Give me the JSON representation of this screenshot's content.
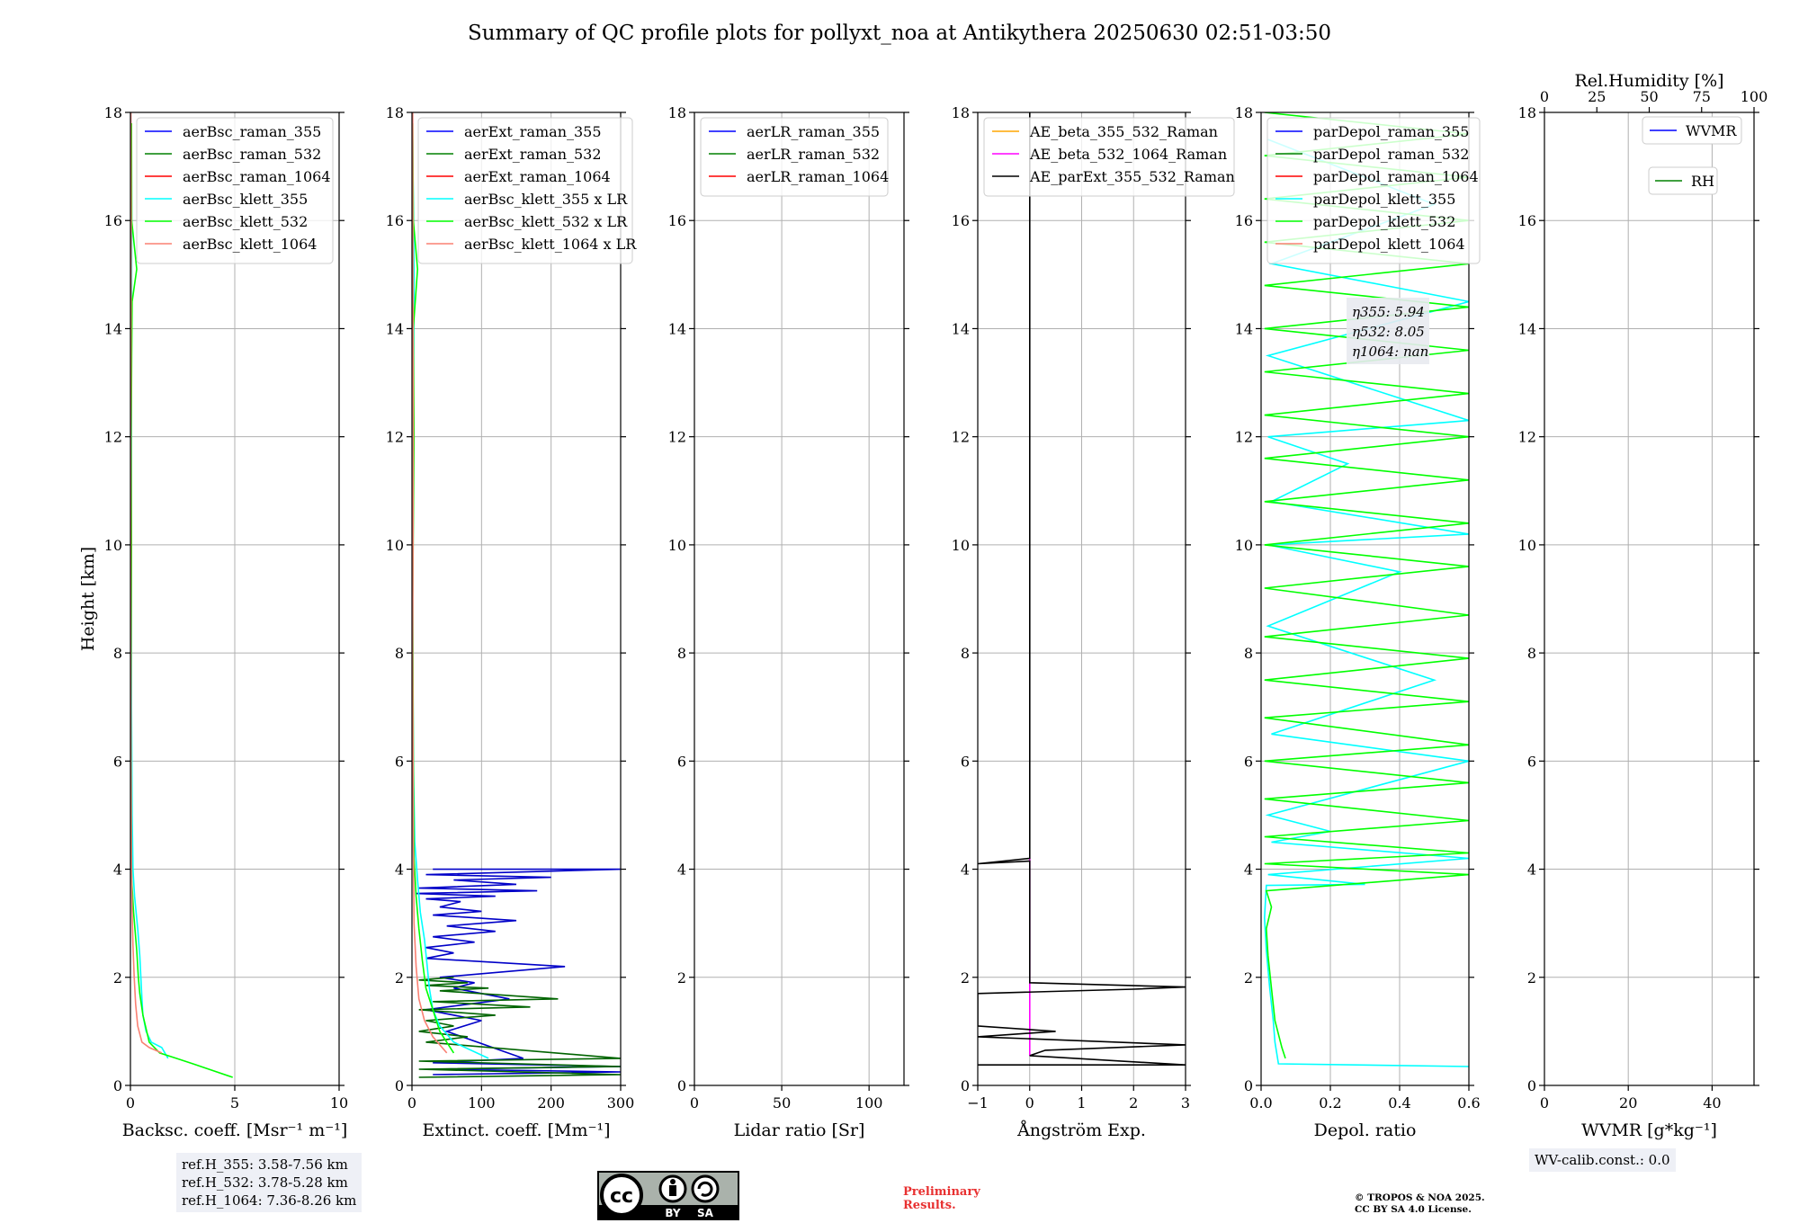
{
  "title": "Summary of QC profile plots for pollyxt_noa at Antikythera 20250630 02:51-03:50",
  "ref_heights": [
    "ref.H_355: 3.58-7.56 km",
    "ref.H_532: 3.78-5.28 km",
    "ref.H_1064: 7.36-8.26 km"
  ],
  "wv_calib": "WV-calib.const.: 0.0",
  "preliminary": [
    "Preliminary",
    "Results."
  ],
  "copyright": [
    "© TROPOS & NOA 2025.",
    "CC BY SA 4.0 License."
  ],
  "cc_logo": {
    "label": "cc",
    "by": "BY",
    "sa": "SA"
  },
  "colors": {
    "blue": "#0000ff",
    "green": "#008000",
    "red": "#ff0000",
    "cyan": "#00ffff",
    "lime": "#00ff00",
    "salmon": "#fa8072",
    "orange": "#ffa500",
    "magenta": "#ff00ff",
    "black": "#000000",
    "darkblue": "#0000c8",
    "darkgreen": "#006400"
  },
  "chart_data": [
    {
      "type": "line",
      "ylabel": "Height [km]",
      "xlabel": "Backsc. coeff. [Msr⁻¹ m⁻¹]",
      "xlim": [
        0,
        10
      ],
      "xticks": [
        "0",
        "5",
        "10"
      ],
      "ylim": [
        0,
        18
      ],
      "yticks": [
        "0",
        "2",
        "4",
        "6",
        "8",
        "10",
        "12",
        "14",
        "16",
        "18"
      ],
      "grid": true,
      "legend_position": "top",
      "legend": [
        "aerBsc_raman_355",
        "aerBsc_raman_532",
        "aerBsc_raman_1064",
        "aerBsc_klett_355",
        "aerBsc_klett_532",
        "aerBsc_klett_1064"
      ],
      "series": [
        {
          "name": "aerBsc_klett_355",
          "color": "cyan",
          "x": [
            1.8,
            1.5,
            1.0,
            0.75,
            0.6,
            0.55,
            0.5,
            0.45,
            0.35,
            0.2,
            0.12,
            0.08,
            0.05,
            0.04,
            0.05,
            0.06,
            0.05
          ],
          "y": [
            0.5,
            0.7,
            0.8,
            1.0,
            1.3,
            1.6,
            2.0,
            2.4,
            2.9,
            3.5,
            4.0,
            5.0,
            7.0,
            10.0,
            13.0,
            16.0,
            17.5
          ]
        },
        {
          "name": "aerBsc_klett_532",
          "color": "lime",
          "x": [
            4.9,
            3.0,
            2.2,
            1.4,
            0.9,
            0.6,
            0.45,
            0.38,
            0.3,
            0.15,
            0.06,
            0.04,
            0.03,
            0.05,
            0.04,
            0.06,
            0.08,
            0.3,
            0.06,
            0.05
          ],
          "y": [
            0.15,
            0.4,
            0.5,
            0.6,
            0.8,
            1.3,
            1.7,
            2.0,
            2.5,
            3.2,
            3.8,
            5.0,
            7.0,
            10.0,
            12.0,
            13.5,
            14.5,
            15.1,
            16.0,
            17.8
          ]
        },
        {
          "name": "aerBsc_klett_1064",
          "color": "salmon",
          "x": [
            1.5,
            0.9,
            0.55,
            0.35,
            0.25,
            0.18,
            0.12,
            0.08,
            0.05,
            0.03,
            0.02,
            0.02,
            0.04,
            0.02
          ],
          "y": [
            0.6,
            0.7,
            0.8,
            1.1,
            1.5,
            2.0,
            2.6,
            3.2,
            4.0,
            6.0,
            9.0,
            12.0,
            16.0,
            18.0
          ]
        }
      ]
    },
    {
      "type": "line",
      "xlabel": "Extinct. coeff. [Mm⁻¹]",
      "xlim": [
        0,
        300
      ],
      "xticks": [
        "0",
        "100",
        "200",
        "300"
      ],
      "ylim": [
        0,
        18
      ],
      "yticks": [
        "0",
        "2",
        "4",
        "6",
        "8",
        "10",
        "12",
        "14",
        "16",
        "18"
      ],
      "grid": true,
      "legend_position": "top",
      "legend": [
        "aerExt_raman_355",
        "aerExt_raman_532",
        "aerExt_raman_1064",
        "aerBsc_klett_355 x LR",
        "aerBsc_klett_532 x LR",
        "aerBsc_klett_1064 x LR"
      ],
      "series": [
        {
          "name": "aerExt_raman_355",
          "color": "darkblue",
          "x": [
            30,
            300,
            20,
            200,
            60,
            150,
            10,
            180,
            5,
            120,
            20,
            70,
            40,
            100,
            30,
            150,
            50,
            120,
            30,
            90,
            20,
            60,
            20,
            220,
            40,
            90,
            60,
            140,
            20,
            100,
            50,
            160,
            30,
            300,
            30,
            300,
            30
          ],
          "y": [
            4.0,
            4.0,
            3.9,
            3.85,
            3.8,
            3.72,
            3.65,
            3.6,
            3.55,
            3.5,
            3.45,
            3.4,
            3.3,
            3.22,
            3.15,
            3.05,
            2.95,
            2.85,
            2.75,
            2.65,
            2.55,
            2.45,
            2.35,
            2.2,
            2.0,
            1.9,
            1.8,
            1.6,
            1.4,
            1.2,
            1.0,
            0.5,
            0.42,
            0.35,
            0.3,
            0.25,
            0.2
          ]
        },
        {
          "name": "aerExt_raman_532",
          "color": "darkgreen",
          "x": [
            60,
            10,
            80,
            20,
            110,
            40,
            210,
            30,
            170,
            10,
            120,
            20,
            60,
            10,
            80,
            20,
            300,
            10,
            300,
            10,
            300,
            10
          ],
          "y": [
            2.0,
            1.95,
            1.9,
            1.85,
            1.8,
            1.75,
            1.6,
            1.55,
            1.45,
            1.4,
            1.3,
            1.2,
            1.1,
            1.0,
            0.9,
            0.8,
            0.5,
            0.45,
            0.35,
            0.3,
            0.2,
            0.15
          ]
        },
        {
          "name": "aerBsc_klett_355 x LR",
          "color": "cyan",
          "x": [
            110,
            60,
            40,
            30,
            25,
            22,
            18,
            12,
            8,
            4,
            2,
            1,
            2,
            3,
            1
          ],
          "y": [
            0.5,
            0.8,
            1.1,
            1.4,
            1.8,
            2.2,
            2.7,
            3.2,
            3.8,
            4.5,
            6.0,
            9.0,
            12.0,
            15.0,
            17.5
          ]
        },
        {
          "name": "aerBsc_klett_532 x LR",
          "color": "lime",
          "x": [
            60,
            40,
            30,
            20,
            15,
            10,
            6,
            3,
            2,
            1,
            3,
            2,
            8,
            2,
            1
          ],
          "y": [
            0.6,
            1.0,
            1.4,
            1.8,
            2.3,
            2.9,
            3.5,
            4.2,
            6.0,
            9.0,
            12.0,
            14.0,
            15.1,
            16.0,
            17.8
          ]
        },
        {
          "name": "aerBsc_klett_1064 x LR",
          "color": "salmon",
          "x": [
            50,
            30,
            18,
            10,
            6,
            3,
            2,
            1,
            2,
            1
          ],
          "y": [
            0.6,
            0.9,
            1.2,
            1.6,
            2.2,
            3.0,
            4.5,
            8.0,
            12.0,
            18.0
          ]
        }
      ]
    },
    {
      "type": "line",
      "xlabel": "Lidar ratio [Sr]",
      "xlim": [
        0,
        120
      ],
      "xticks": [
        "0",
        "50",
        "100"
      ],
      "ylim": [
        0,
        18
      ],
      "yticks": [
        "0",
        "2",
        "4",
        "6",
        "8",
        "10",
        "12",
        "14",
        "16",
        "18"
      ],
      "grid": true,
      "legend_position": "top",
      "legend": [
        "aerLR_raman_355",
        "aerLR_raman_532",
        "aerLR_raman_1064"
      ],
      "series": []
    },
    {
      "type": "line",
      "xlabel": "Ångström Exp.",
      "xlim": [
        -1,
        3
      ],
      "xticks": [
        "−1",
        "0",
        "1",
        "2",
        "3"
      ],
      "ylim": [
        0,
        18
      ],
      "yticks": [
        "0",
        "2",
        "4",
        "6",
        "8",
        "10",
        "12",
        "14",
        "16",
        "18"
      ],
      "grid": true,
      "legend_position": "top",
      "legend": [
        "AE_beta_355_532_Raman",
        "AE_beta_532_1064_Raman",
        "AE_parExt_355_532_Raman"
      ],
      "series": [
        {
          "name": "AE_beta_532_1064_Raman",
          "color": "magenta",
          "x": [
            0,
            0
          ],
          "y": [
            0.55,
            4.2
          ]
        },
        {
          "name": "AE_parExt_355_532_Raman",
          "color": "black",
          "x": [
            -1,
            3,
            0,
            0.3,
            3,
            -1,
            0.5,
            -1,
            -1,
            2,
            3,
            0,
            0,
            -1,
            0,
            0
          ],
          "y": [
            0.38,
            0.38,
            0.55,
            0.65,
            0.75,
            0.9,
            1.0,
            1.1,
            1.7,
            1.78,
            1.82,
            1.9,
            4.15,
            4.1,
            4.2,
            18.0
          ]
        }
      ]
    },
    {
      "type": "line",
      "xlabel": "Depol. ratio",
      "xlim": [
        0,
        0.6
      ],
      "xticks": [
        "0.0",
        "0.2",
        "0.4",
        "0.6"
      ],
      "ylim": [
        0,
        18
      ],
      "yticks": [
        "0",
        "2",
        "4",
        "6",
        "8",
        "10",
        "12",
        "14",
        "16",
        "18"
      ],
      "grid": true,
      "legend_position": "top",
      "legend": [
        "parDepol_raman_355",
        "parDepol_raman_532",
        "parDepol_raman_1064",
        "parDepol_klett_355",
        "parDepol_klett_532",
        "parDepol_klett_1064"
      ],
      "annotation": [
        "η355: 5.94",
        "η532: 8.05",
        "η1064: nan"
      ],
      "series": [
        {
          "name": "parDepol_klett_355",
          "color": "cyan",
          "x": [
            0.6,
            0.05,
            0.04,
            0.035,
            0.025,
            0.015,
            0.01,
            0.015,
            0.3,
            0.02,
            0.6,
            0.03,
            0.2,
            0.02,
            0.6,
            0.03,
            0.5,
            0.02,
            0.4,
            0.02,
            0.6,
            0.03,
            0.25,
            0.02,
            0.6,
            0.02,
            0.6,
            0.03,
            0.5,
            0.02
          ],
          "y": [
            0.35,
            0.4,
            0.8,
            1.2,
            1.8,
            2.5,
            3.1,
            3.7,
            3.72,
            3.9,
            4.2,
            4.5,
            4.7,
            5.0,
            6.0,
            6.5,
            7.5,
            8.5,
            9.5,
            10.0,
            10.2,
            10.8,
            11.5,
            12.0,
            12.3,
            13.5,
            14.5,
            15.2,
            16.3,
            17.5
          ]
        },
        {
          "name": "parDepol_klett_532",
          "color": "lime",
          "x": [
            0.07,
            0.06,
            0.04,
            0.03,
            0.02,
            0.015,
            0.03,
            0.015,
            0.6,
            0.01,
            0.6,
            0.01,
            0.6,
            0.01,
            0.6,
            0.01,
            0.6,
            0.01,
            0.6,
            0.01,
            0.6,
            0.01,
            0.6,
            0.01,
            0.6,
            0.01,
            0.6,
            0.01,
            0.6,
            0.01,
            0.6,
            0.01,
            0.6,
            0.01,
            0.6,
            0.01,
            0.6,
            0.01,
            0.6,
            0.01,
            0.6,
            0.01,
            0.6,
            0.01,
            0.6,
            0.01
          ],
          "y": [
            0.5,
            0.7,
            1.2,
            1.8,
            2.4,
            2.9,
            3.3,
            3.6,
            3.9,
            4.1,
            4.3,
            4.6,
            4.9,
            5.3,
            5.6,
            6.0,
            6.3,
            6.8,
            7.1,
            7.5,
            7.9,
            8.3,
            8.7,
            9.2,
            9.6,
            10.0,
            10.4,
            10.8,
            11.2,
            11.6,
            12.0,
            12.4,
            12.8,
            13.2,
            13.6,
            14.0,
            14.4,
            14.8,
            15.2,
            15.6,
            16.0,
            16.4,
            16.8,
            17.2,
            17.6,
            18.0
          ]
        }
      ]
    },
    {
      "type": "line",
      "xlabel": "WVMR [g*kg⁻¹]",
      "xlim": [
        0,
        50
      ],
      "xticks": [
        "0",
        "20",
        "40"
      ],
      "x2label": "Rel.Humidity [%]",
      "x2lim": [
        0,
        100
      ],
      "x2ticks": [
        "0",
        "25",
        "50",
        "75",
        "100"
      ],
      "ylim": [
        0,
        18
      ],
      "yticks": [
        "0",
        "2",
        "4",
        "6",
        "8",
        "10",
        "12",
        "14",
        "16",
        "18"
      ],
      "grid": true,
      "legend": [
        "WVMR"
      ],
      "legend2": [
        "RH"
      ],
      "series": []
    }
  ]
}
